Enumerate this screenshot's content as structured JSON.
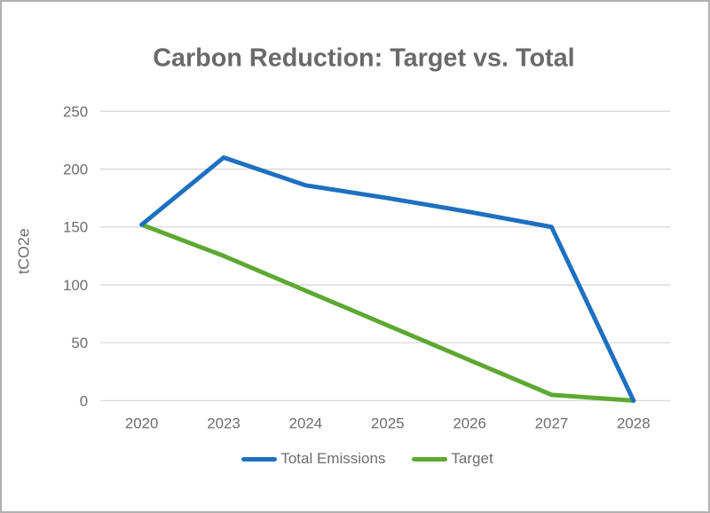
{
  "frame": {
    "background": "#ffffff",
    "border_color": "#b1b1b1"
  },
  "chart_data": {
    "type": "line",
    "title": "Carbon Reduction: Target vs. Total",
    "xlabel": "",
    "ylabel": "tCO2e",
    "categories": [
      "2020",
      "2023",
      "2024",
      "2025",
      "2026",
      "2027",
      "2028"
    ],
    "series": [
      {
        "name": "Total Emissions",
        "color": "#1e70c1",
        "values": [
          152,
          210,
          186,
          175,
          163,
          150,
          0
        ]
      },
      {
        "name": "Target",
        "color": "#5da832",
        "values": [
          152,
          125,
          95,
          65,
          35,
          5,
          0
        ]
      }
    ],
    "ylim": [
      0,
      250
    ],
    "yticks": [
      0,
      50,
      100,
      150,
      200,
      250
    ],
    "grid": true,
    "gridline_color": "#d8d8d8",
    "text_color": "#6d6d6d",
    "title_color": "#6a6a6a",
    "legend_position": "bottom"
  }
}
